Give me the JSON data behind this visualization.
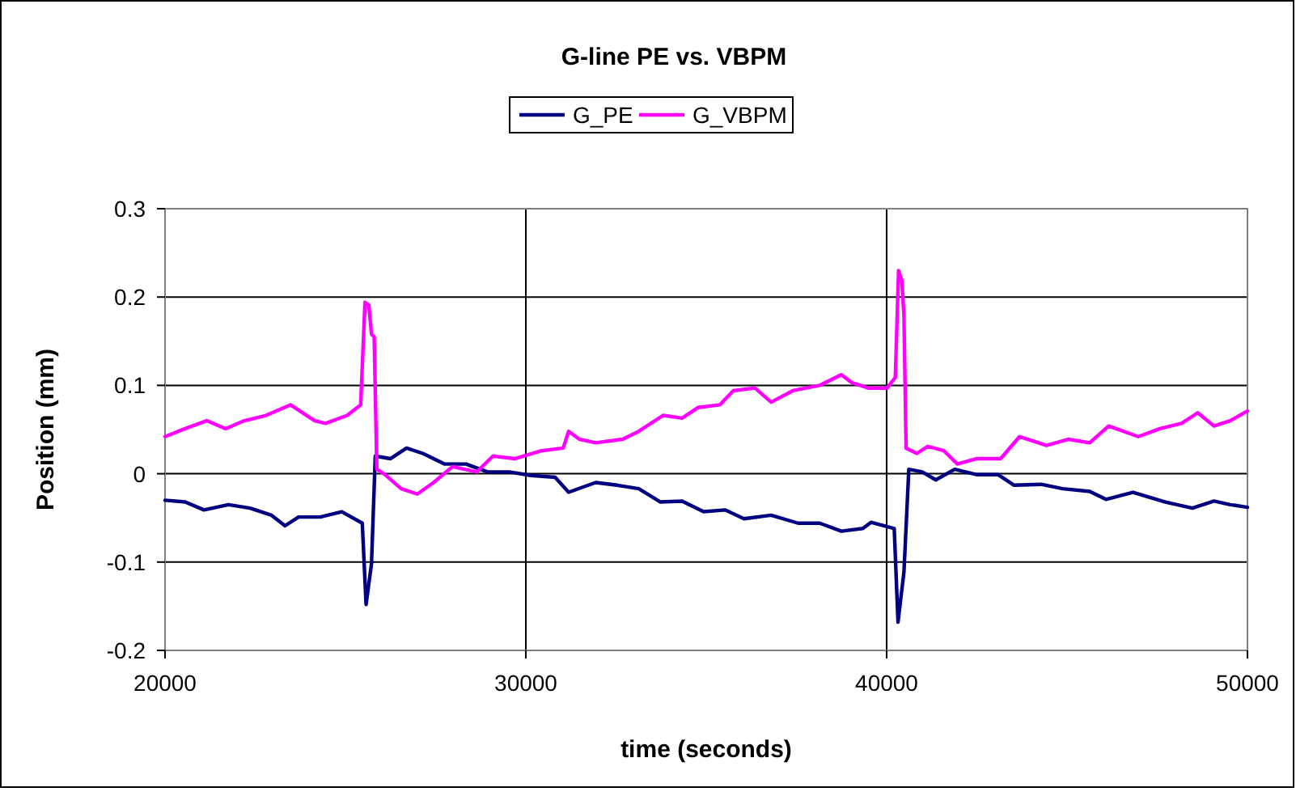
{
  "chart_data": {
    "type": "line",
    "title": "G-line PE vs. VBPM",
    "xlabel": "time (seconds)",
    "ylabel": "Position (mm)",
    "xlim": [
      20000,
      50000
    ],
    "xticks": [
      20000,
      30000,
      40000,
      50000
    ],
    "ylim": [
      -0.2,
      0.3
    ],
    "yticks": [
      -0.2,
      -0.1,
      0,
      0.1,
      0.2,
      0.3
    ],
    "grid": true,
    "legend": "top",
    "line_style": "solid",
    "marker": "none",
    "series": [
      {
        "name": "G_PE",
        "color": "#000080",
        "x": [
          20000,
          20557,
          21081,
          21755,
          22353,
          22952,
          23326,
          23700,
          24300,
          24898,
          25467,
          25572,
          25722,
          25827,
          26245,
          26694,
          27143,
          27742,
          28341,
          28940,
          29539,
          30138,
          30811,
          31186,
          31935,
          32533,
          33130,
          33730,
          34330,
          34928,
          35526,
          36048,
          36797,
          37545,
          38144,
          38743,
          39342,
          39566,
          40210,
          40315,
          40480,
          40614,
          40988,
          41362,
          41887,
          42485,
          43084,
          43533,
          44281,
          44880,
          45629,
          46078,
          46826,
          47724,
          48473,
          49072,
          49521,
          50000
        ],
        "values": [
          -0.03,
          -0.032,
          -0.041,
          -0.035,
          -0.039,
          -0.047,
          -0.059,
          -0.049,
          -0.049,
          -0.043,
          -0.056,
          -0.148,
          -0.102,
          0.02,
          0.017,
          0.029,
          0.023,
          0.011,
          0.011,
          0.002,
          0.002,
          -0.002,
          -0.004,
          -0.021,
          -0.01,
          -0.013,
          -0.017,
          -0.032,
          -0.031,
          -0.043,
          -0.041,
          -0.051,
          -0.047,
          -0.056,
          -0.056,
          -0.065,
          -0.062,
          -0.055,
          -0.062,
          -0.168,
          -0.111,
          0.005,
          0.002,
          -0.007,
          0.005,
          -0.001,
          -0.001,
          -0.013,
          -0.012,
          -0.017,
          -0.02,
          -0.029,
          -0.021,
          -0.032,
          -0.039,
          -0.031,
          -0.035,
          -0.038
        ]
      },
      {
        "name": "G_VBPM",
        "color": "#ff00ff",
        "x": [
          20000,
          20557,
          21156,
          21680,
          22200,
          22800,
          23476,
          24150,
          24450,
          25050,
          25422,
          25542,
          25647,
          25722,
          25797,
          25870,
          26096,
          26545,
          26994,
          27443,
          27967,
          28640,
          29090,
          29689,
          30437,
          31036,
          31186,
          31486,
          31935,
          32683,
          33130,
          33805,
          34330,
          34780,
          35378,
          35750,
          36350,
          36800,
          37400,
          38144,
          38743,
          39042,
          39491,
          40015,
          40240,
          40330,
          40419,
          40479,
          40539,
          40839,
          41138,
          41587,
          41961,
          42485,
          43159,
          43683,
          44431,
          45030,
          45629,
          46153,
          46976,
          47575,
          48174,
          48623,
          49072,
          49521,
          50000
        ],
        "values": [
          0.042,
          0.051,
          0.06,
          0.051,
          0.06,
          0.066,
          0.078,
          0.06,
          0.057,
          0.066,
          0.078,
          0.194,
          0.191,
          0.158,
          0.155,
          0.005,
          -0.001,
          -0.017,
          -0.023,
          -0.01,
          0.008,
          0.002,
          0.02,
          0.017,
          0.026,
          0.029,
          0.048,
          0.039,
          0.035,
          0.039,
          0.048,
          0.066,
          0.063,
          0.075,
          0.078,
          0.094,
          0.097,
          0.081,
          0.094,
          0.1,
          0.112,
          0.103,
          0.097,
          0.097,
          0.109,
          0.23,
          0.219,
          0.179,
          0.029,
          0.023,
          0.031,
          0.026,
          0.011,
          0.017,
          0.017,
          0.042,
          0.032,
          0.039,
          0.035,
          0.054,
          0.042,
          0.051,
          0.057,
          0.069,
          0.054,
          0.06,
          0.071
        ]
      }
    ]
  }
}
